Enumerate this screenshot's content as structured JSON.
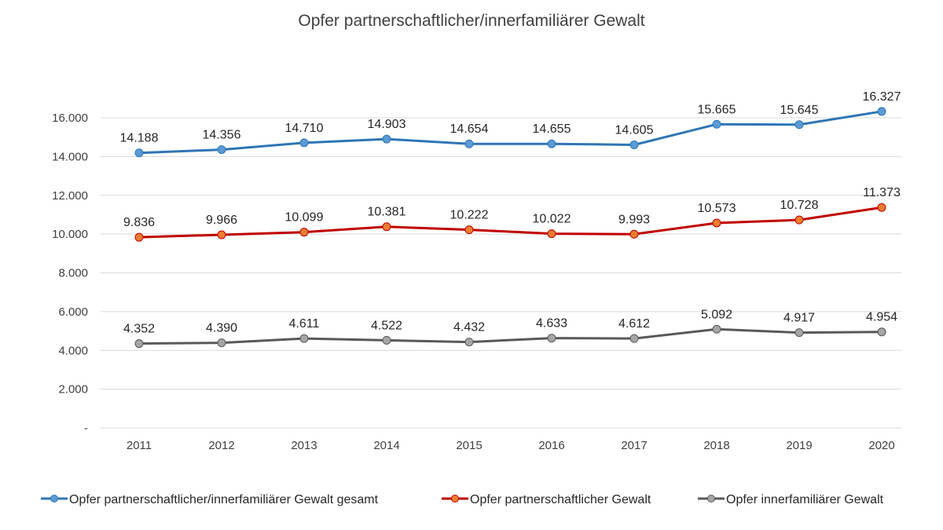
{
  "chart_data": {
    "type": "line",
    "title": "Opfer partnerschaftlicher/innerfamiliärer  Gewalt",
    "xlabel": "",
    "ylabel": "",
    "categories": [
      "2011",
      "2012",
      "2013",
      "2014",
      "2015",
      "2016",
      "2017",
      "2018",
      "2019",
      "2020"
    ],
    "ylim": [
      0,
      16000
    ],
    "yticks": [
      0,
      2000,
      4000,
      6000,
      8000,
      10000,
      12000,
      14000,
      16000
    ],
    "ytick_labels": [
      "-",
      "2.000",
      "4.000",
      "6.000",
      "8.000",
      "10.000",
      "12.000",
      "14.000",
      "16.000"
    ],
    "grid": true,
    "legend_position": "bottom",
    "series": [
      {
        "name": "Opfer partnerschaftlicher/innerfamiliärer Gewalt gesamt",
        "color": "#2e75b6",
        "marker_color": "#5b9bd5",
        "values": [
          14188,
          14356,
          14710,
          14903,
          14654,
          14655,
          14605,
          15665,
          15645,
          16327
        ],
        "labels": [
          "14.188",
          "14.356",
          "14.710",
          "14.903",
          "14.654",
          "14.655",
          "14.605",
          "15.665",
          "15.645",
          "16.327"
        ]
      },
      {
        "name": "Opfer partnerschaftlicher Gewalt",
        "color": "#c00000",
        "marker_color": "#ed7d31",
        "values": [
          9836,
          9966,
          10099,
          10381,
          10222,
          10022,
          9993,
          10573,
          10728,
          11373
        ],
        "labels": [
          "9.836",
          "9.966",
          "10.099",
          "10.381",
          "10.222",
          "10.022",
          "9.993",
          "10.573",
          "10.728",
          "11.373"
        ]
      },
      {
        "name": "Opfer innerfamiliärer Gewalt",
        "color": "#595959",
        "marker_color": "#a5a5a5",
        "values": [
          4352,
          4390,
          4611,
          4522,
          4432,
          4633,
          4612,
          5092,
          4917,
          4954
        ],
        "labels": [
          "4.352",
          "4.390",
          "4.611",
          "4.522",
          "4.432",
          "4.633",
          "4.612",
          "5.092",
          "4.917",
          "4.954"
        ]
      }
    ]
  }
}
